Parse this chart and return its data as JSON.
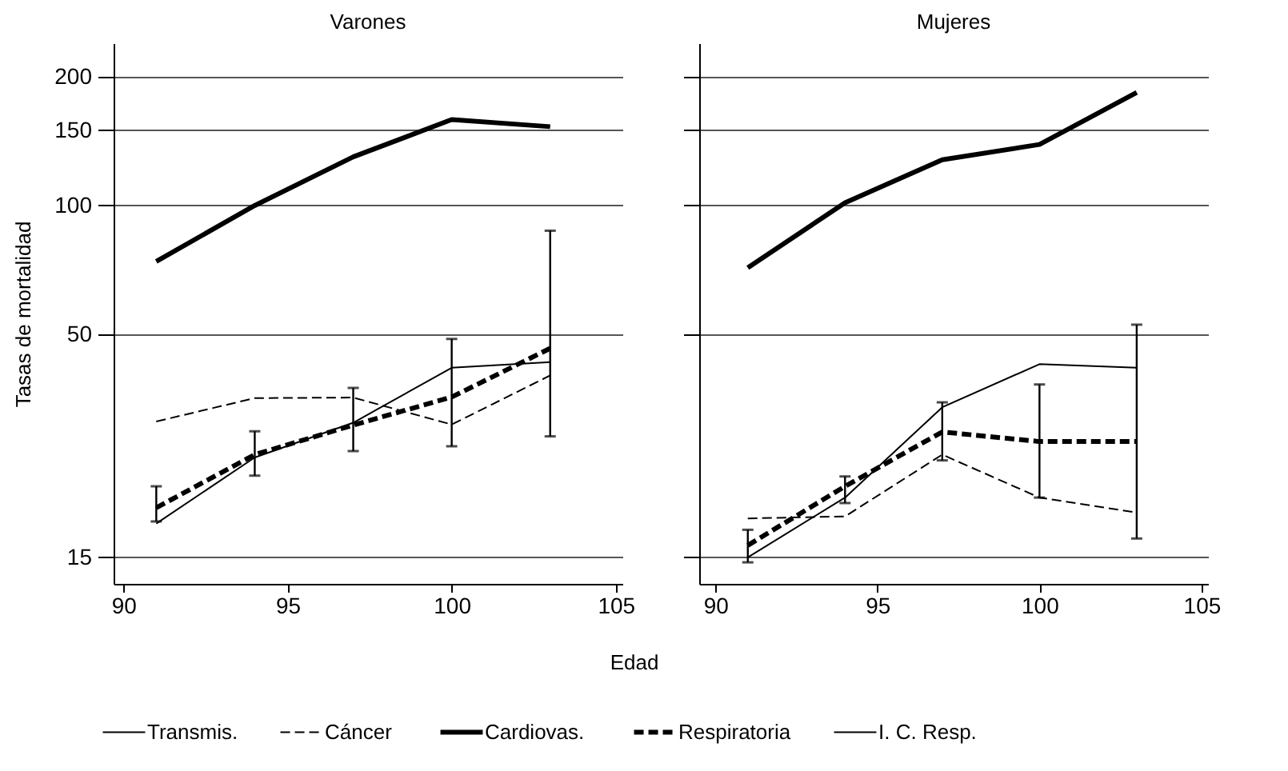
{
  "chart_data": [
    {
      "type": "line",
      "title": "Varones",
      "xlabel": "Edad",
      "ylabel": "Tasas de mortalidad",
      "x": [
        91,
        94,
        97,
        100,
        103
      ],
      "log": "y",
      "xlim": [
        89.7,
        105.2
      ],
      "xticks": [
        90,
        95,
        100,
        105
      ],
      "ylim": [
        13,
        240
      ],
      "yticks": [
        15,
        50,
        100,
        150,
        200
      ],
      "grid": "y",
      "legend": "bottom",
      "annotations": [
        "I. C. Resp."
      ],
      "series": [
        {
          "name": "Transmis.",
          "color": "#000000",
          "line_style": "solid",
          "values": [
            18,
            25.7,
            31,
            41.7,
            43
          ]
        },
        {
          "name": "Cáncer",
          "color": "#000000",
          "line_style": "dashed",
          "values": [
            31.2,
            35.4,
            35.5,
            30.7,
            40
          ]
        },
        {
          "name": "Cardiovas.",
          "color": "#000000",
          "line_style": "solid",
          "values": [
            74,
            100,
            130,
            159,
            153
          ]
        },
        {
          "name": "Respiratoria",
          "color": "#000000",
          "line_style": "dashed",
          "values": [
            19.6,
            26.1,
            30.6,
            35.6,
            46.3
          ],
          "errors": [
            [
              18.2,
              22
            ],
            [
              23.3,
              29.6
            ],
            [
              26.6,
              37.4
            ],
            [
              27.3,
              48.7
            ],
            [
              28.8,
              87.3
            ]
          ]
        }
      ]
    },
    {
      "type": "line",
      "title": "Mujeres",
      "x": [
        91,
        94,
        97,
        100,
        103
      ],
      "log": "y",
      "xlim": [
        89.5,
        105.2
      ],
      "xticks": [
        90,
        95,
        100,
        105
      ],
      "ylim": [
        13,
        240
      ],
      "yticks": [
        15,
        50,
        100,
        150,
        200
      ],
      "grid": "y",
      "tick_labels": "x",
      "legend": "bottom",
      "series": [
        {
          "name": "Transmis.",
          "color": "#000000",
          "line_style": "solid",
          "values": [
            15,
            20.7,
            33.7,
            42.5,
            41.7
          ]
        },
        {
          "name": "Cáncer",
          "color": "#000000",
          "line_style": "dashed",
          "values": [
            18.5,
            18.7,
            26.1,
            20.7,
            19.1
          ]
        },
        {
          "name": "Cardiovas.",
          "color": "#000000",
          "line_style": "solid",
          "values": [
            71.5,
            101.5,
            128,
            139,
            184
          ]
        },
        {
          "name": "Respiratoria",
          "color": "#000000",
          "line_style": "dashed",
          "values": [
            16,
            22,
            29.5,
            28,
            28
          ],
          "errors": [
            [
              14.6,
              17.4
            ],
            [
              20.1,
              23.2
            ],
            [
              25.3,
              34.6
            ],
            [
              20.7,
              38.1
            ],
            [
              16.6,
              52.6
            ]
          ]
        }
      ]
    }
  ]
}
